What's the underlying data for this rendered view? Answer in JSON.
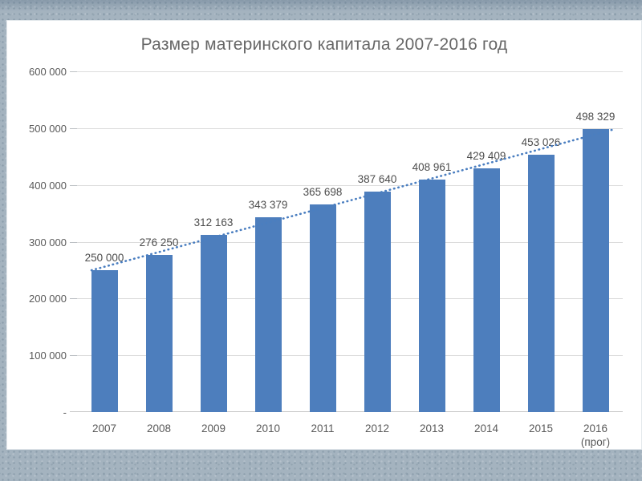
{
  "slide": {
    "background_base_color": "#a4b3bf",
    "card_background_color": "#ffffff"
  },
  "chart_data": {
    "type": "bar",
    "title": "Размер материнского капитала 2007-2016 год",
    "categories": [
      [
        "2007"
      ],
      [
        "2008"
      ],
      [
        "2009"
      ],
      [
        "2010"
      ],
      [
        "2011"
      ],
      [
        "2012"
      ],
      [
        "2013"
      ],
      [
        "2014"
      ],
      [
        "2015"
      ],
      [
        "2016",
        "(прог)"
      ]
    ],
    "values": [
      250000,
      276250,
      312163,
      343379,
      365698,
      387640,
      408961,
      429409,
      453026,
      498329
    ],
    "value_labels": [
      "250 000",
      "276 250",
      "312 163",
      "343 379",
      "365 698",
      "387 640",
      "408 961",
      "429 409",
      "453 026",
      "498 329"
    ],
    "xlabel": "",
    "ylabel": "",
    "ylim": [
      0,
      600000
    ],
    "y_ticks": [
      {
        "value": 600000,
        "label": "600 000"
      },
      {
        "value": 500000,
        "label": "500 000"
      },
      {
        "value": 400000,
        "label": "400 000"
      },
      {
        "value": 300000,
        "label": "300 000"
      },
      {
        "value": 200000,
        "label": "200 000"
      },
      {
        "value": 100000,
        "label": "100 000"
      },
      {
        "value": 0,
        "label": "-"
      }
    ],
    "grid": "horizontal",
    "legend": "none",
    "trendline": {
      "style": "dotted",
      "fit": "linear"
    },
    "colors": {
      "bar": "#4d7ebd",
      "trend": "#4a7ec0",
      "gridline": "#dcdcdc",
      "axis_line": "#c9c9c9",
      "tick": "#bcc0c4",
      "axis_text": "#595959",
      "value_text": "#4d4d4d",
      "title_text": "#676767"
    }
  }
}
